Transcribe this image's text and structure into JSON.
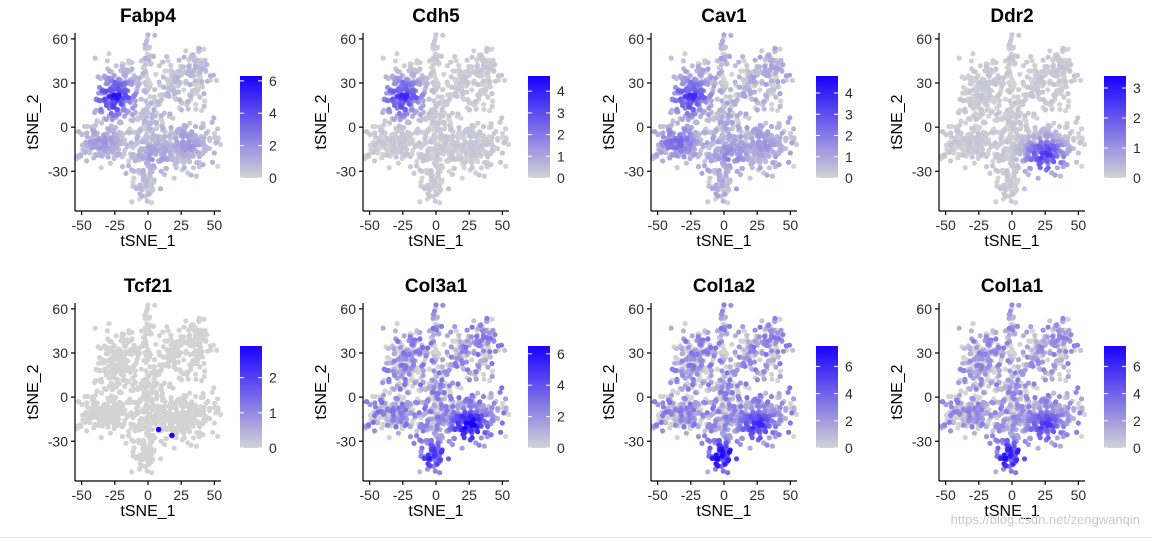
{
  "figure": {
    "colors": {
      "low": "#d3d3d3",
      "high": "#1a00ff",
      "axis": "#000000",
      "text": "#000000"
    },
    "watermark": "https://blog.csdn.net/zengwanqin"
  },
  "chart_data": [
    {
      "type": "scatter",
      "title": "Fabp4",
      "xlabel": "tSNE_1",
      "ylabel": "tSNE_2",
      "xlim": [
        -55,
        55
      ],
      "ylim": [
        -57,
        64
      ],
      "xticks": [
        -50,
        -25,
        0,
        25,
        50
      ],
      "yticks": [
        -30,
        0,
        30,
        60
      ],
      "legend": {
        "min": 0,
        "max": 6.3,
        "ticks": [
          0,
          2,
          4,
          6
        ]
      },
      "expression_regions": [
        {
          "region": "upper-left cluster",
          "center": [
            -25,
            20
          ],
          "level": 4.5
        },
        {
          "region": "left band",
          "center": [
            -35,
            -10
          ],
          "level": 1.5
        },
        {
          "region": "lower-middle band",
          "center": [
            5,
            -20
          ],
          "level": 1.5
        },
        {
          "region": "right band",
          "center": [
            30,
            -10
          ],
          "level": 1.5
        }
      ],
      "background_level": 0.6
    },
    {
      "type": "scatter",
      "title": "Cdh5",
      "xlabel": "tSNE_1",
      "ylabel": "tSNE_2",
      "xlim": [
        -55,
        55
      ],
      "ylim": [
        -57,
        64
      ],
      "xticks": [
        -50,
        -25,
        0,
        25,
        50
      ],
      "yticks": [
        -30,
        0,
        30,
        60
      ],
      "legend": {
        "min": 0,
        "max": 4.7,
        "ticks": [
          0,
          1,
          2,
          3,
          4
        ]
      },
      "expression_regions": [
        {
          "region": "upper-left cluster",
          "center": [
            -25,
            20
          ],
          "level": 3
        }
      ],
      "background_level": 0.2
    },
    {
      "type": "scatter",
      "title": "Cav1",
      "xlabel": "tSNE_1",
      "ylabel": "tSNE_2",
      "xlim": [
        -55,
        55
      ],
      "ylim": [
        -57,
        64
      ],
      "xticks": [
        -50,
        -25,
        0,
        25,
        50
      ],
      "yticks": [
        -30,
        0,
        30,
        60
      ],
      "legend": {
        "min": 0,
        "max": 4.8,
        "ticks": [
          0,
          1,
          2,
          3,
          4
        ]
      },
      "expression_regions": [
        {
          "region": "upper-left cluster",
          "center": [
            -25,
            20
          ],
          "level": 3
        },
        {
          "region": "left band",
          "center": [
            -35,
            -10
          ],
          "level": 2
        },
        {
          "region": "lower-middle band",
          "center": [
            5,
            -20
          ],
          "level": 1.5
        },
        {
          "region": "right band",
          "center": [
            30,
            -10
          ],
          "level": 1.2
        }
      ],
      "background_level": 0.7
    },
    {
      "type": "scatter",
      "title": "Ddr2",
      "xlabel": "tSNE_1",
      "ylabel": "tSNE_2",
      "xlim": [
        -55,
        55
      ],
      "ylim": [
        -57,
        64
      ],
      "xticks": [
        -50,
        -25,
        0,
        25,
        50
      ],
      "yticks": [
        -30,
        0,
        30,
        60
      ],
      "legend": {
        "min": 0,
        "max": 3.4,
        "ticks": [
          0,
          1,
          2,
          3
        ]
      },
      "expression_regions": [
        {
          "region": "lower-right cluster",
          "center": [
            25,
            -20
          ],
          "level": 2
        }
      ],
      "background_level": 0.15
    },
    {
      "type": "scatter",
      "title": "Tcf21",
      "xlabel": "tSNE_1",
      "ylabel": "tSNE_2",
      "xlim": [
        -55,
        55
      ],
      "ylim": [
        -57,
        64
      ],
      "xticks": [
        -50,
        -25,
        0,
        25,
        50
      ],
      "yticks": [
        -30,
        0,
        30,
        60
      ],
      "legend": {
        "min": 0,
        "max": 2.9,
        "ticks": [
          0,
          1,
          2
        ]
      },
      "expression_regions": [],
      "highlight_points": [
        [
          8,
          -22
        ],
        [
          18,
          -26
        ]
      ],
      "background_level": 0
    },
    {
      "type": "scatter",
      "title": "Col3a1",
      "xlabel": "tSNE_1",
      "ylabel": "tSNE_2",
      "xlim": [
        -55,
        55
      ],
      "ylim": [
        -57,
        64
      ],
      "xticks": [
        -50,
        -25,
        0,
        25,
        50
      ],
      "yticks": [
        -30,
        0,
        30,
        60
      ],
      "legend": {
        "min": 0,
        "max": 6.5,
        "ticks": [
          0,
          2,
          4,
          6
        ]
      },
      "expression_regions": [
        {
          "region": "lower-right cluster",
          "center": [
            25,
            -20
          ],
          "level": 5.5
        },
        {
          "region": "bottom arm",
          "center": [
            -2,
            -40
          ],
          "level": 4.5
        }
      ],
      "background_level": 1.8
    },
    {
      "type": "scatter",
      "title": "Col1a2",
      "xlabel": "tSNE_1",
      "ylabel": "tSNE_2",
      "xlim": [
        -55,
        55
      ],
      "ylim": [
        -57,
        64
      ],
      "xticks": [
        -50,
        -25,
        0,
        25,
        50
      ],
      "yticks": [
        -30,
        0,
        30,
        60
      ],
      "legend": {
        "min": 0,
        "max": 7.5,
        "ticks": [
          0,
          2,
          4,
          6
        ]
      },
      "expression_regions": [
        {
          "region": "lower-right cluster",
          "center": [
            25,
            -20
          ],
          "level": 5
        },
        {
          "region": "bottom arm",
          "center": [
            -2,
            -40
          ],
          "level": 6.5
        }
      ],
      "background_level": 2
    },
    {
      "type": "scatter",
      "title": "Col1a1",
      "xlabel": "tSNE_1",
      "ylabel": "tSNE_2",
      "xlim": [
        -55,
        55
      ],
      "ylim": [
        -57,
        64
      ],
      "xticks": [
        -50,
        -25,
        0,
        25,
        50
      ],
      "yticks": [
        -30,
        0,
        30,
        60
      ],
      "legend": {
        "min": 0,
        "max": 7.5,
        "ticks": [
          0,
          2,
          4,
          6
        ]
      },
      "expression_regions": [
        {
          "region": "lower-right cluster",
          "center": [
            25,
            -20
          ],
          "level": 4.5
        },
        {
          "region": "bottom arm",
          "center": [
            -2,
            -40
          ],
          "level": 6
        }
      ],
      "background_level": 1.8
    }
  ]
}
